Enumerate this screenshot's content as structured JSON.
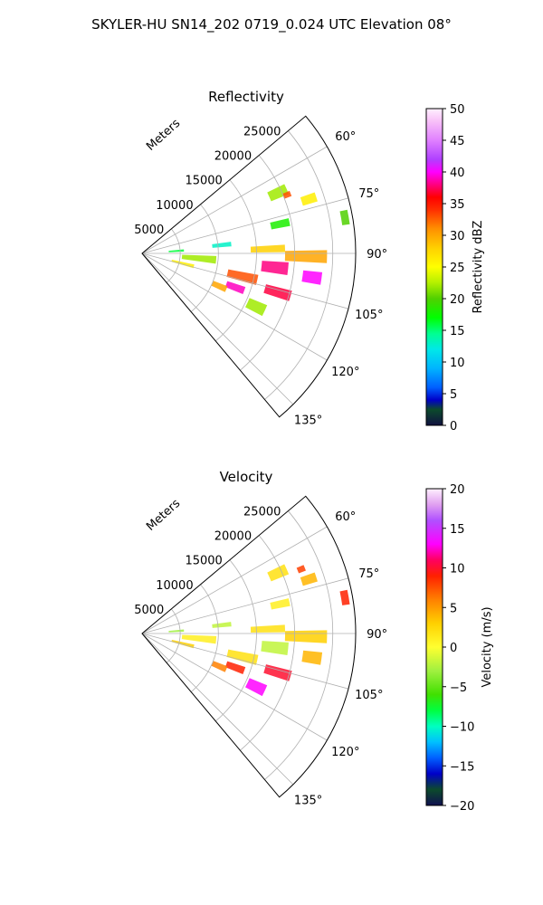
{
  "figure": {
    "title": "SKYLER-HU  SN14_202  0719_0.024 UTC Elevation 08°"
  },
  "chart_data": [
    {
      "type": "heatmap",
      "projection": "polar-sector",
      "title": "Reflectivity",
      "radial_axis_label": "Meters",
      "radial_ticks": [
        5000,
        10000,
        15000,
        20000,
        25000
      ],
      "radial_tick_labels": [
        "5000",
        "10000",
        "15000",
        "20000",
        "25000"
      ],
      "rmax": 28000,
      "angle_range_deg": [
        50,
        140
      ],
      "angle_ticks": [
        60,
        75,
        90,
        105,
        120,
        135
      ],
      "angle_tick_labels": [
        "60°",
        "75°",
        "90°",
        "105°",
        "120°",
        "135°"
      ],
      "grid": true,
      "colorbar": {
        "label": "Reflectivity dBZ",
        "min": 0,
        "max": 50,
        "ticks": [
          0,
          5,
          10,
          15,
          20,
          25,
          30,
          35,
          40,
          45,
          50
        ],
        "tick_labels": [
          "0",
          "5",
          "10",
          "15",
          "20",
          "25",
          "30",
          "35",
          "40",
          "45",
          "50"
        ],
        "stops": [
          {
            "v": 0,
            "color": "#101040"
          },
          {
            "v": 2.5,
            "color": "#0c4a2c"
          },
          {
            "v": 4,
            "color": "#0000c8"
          },
          {
            "v": 6,
            "color": "#0060ff"
          },
          {
            "v": 9,
            "color": "#00b4ff"
          },
          {
            "v": 12,
            "color": "#00e8e8"
          },
          {
            "v": 14.5,
            "color": "#00ff90"
          },
          {
            "v": 17,
            "color": "#00ff00"
          },
          {
            "v": 20,
            "color": "#50d000"
          },
          {
            "v": 22.5,
            "color": "#b4f000"
          },
          {
            "v": 25,
            "color": "#ffff00"
          },
          {
            "v": 28,
            "color": "#ffd000"
          },
          {
            "v": 31,
            "color": "#ff9000"
          },
          {
            "v": 34,
            "color": "#ff3000"
          },
          {
            "v": 36,
            "color": "#ff0000"
          },
          {
            "v": 38,
            "color": "#ff0080"
          },
          {
            "v": 40,
            "color": "#ff00ff"
          },
          {
            "v": 42,
            "color": "#b040ff"
          },
          {
            "v": 45,
            "color": "#e080ff"
          },
          {
            "v": 48,
            "color": "#f8c0f8"
          },
          {
            "v": 50,
            "color": "#fff0ff"
          }
        ]
      },
      "echo_cells": [
        {
          "theta": 66,
          "r": 19500,
          "dtheta": 4,
          "dr": 2500,
          "value": 22
        },
        {
          "theta": 68,
          "r": 20500,
          "dtheta": 2,
          "dr": 1000,
          "value": 33
        },
        {
          "theta": 72,
          "r": 23000,
          "dtheta": 3,
          "dr": 2000,
          "value": 26
        },
        {
          "theta": 78,
          "r": 18500,
          "dtheta": 3,
          "dr": 2500,
          "value": 18
        },
        {
          "theta": 80,
          "r": 27000,
          "dtheta": 4,
          "dr": 1000,
          "value": 20
        },
        {
          "theta": 84,
          "r": 10500,
          "dtheta": 3,
          "dr": 2500,
          "value": 13
        },
        {
          "theta": 86,
          "r": 4500,
          "dtheta": 3,
          "dr": 2000,
          "value": 16
        },
        {
          "theta": 88,
          "r": 16500,
          "dtheta": 3,
          "dr": 4500,
          "value": 28
        },
        {
          "theta": 91,
          "r": 21500,
          "dtheta": 4,
          "dr": 5500,
          "value": 30
        },
        {
          "theta": 95,
          "r": 7500,
          "dtheta": 6,
          "dr": 4500,
          "value": 22
        },
        {
          "theta": 96,
          "r": 17500,
          "dtheta": 5,
          "dr": 3500,
          "value": 38
        },
        {
          "theta": 98,
          "r": 22500,
          "dtheta": 4,
          "dr": 2500,
          "value": 40
        },
        {
          "theta": 103,
          "r": 13500,
          "dtheta": 5,
          "dr": 4000,
          "value": 33
        },
        {
          "theta": 106,
          "r": 18500,
          "dtheta": 4,
          "dr": 3500,
          "value": 37
        },
        {
          "theta": 104,
          "r": 5500,
          "dtheta": 4,
          "dr": 3000,
          "value": 26
        },
        {
          "theta": 110,
          "r": 13000,
          "dtheta": 4,
          "dr": 2500,
          "value": 39
        },
        {
          "theta": 113,
          "r": 11000,
          "dtheta": 4,
          "dr": 2000,
          "value": 30
        },
        {
          "theta": 115,
          "r": 16500,
          "dtheta": 5,
          "dr": 2500,
          "value": 22
        }
      ]
    },
    {
      "type": "heatmap",
      "projection": "polar-sector",
      "title": "Velocity",
      "radial_axis_label": "Meters",
      "radial_ticks": [
        5000,
        10000,
        15000,
        20000,
        25000
      ],
      "radial_tick_labels": [
        "5000",
        "10000",
        "15000",
        "20000",
        "25000"
      ],
      "rmax": 28000,
      "angle_range_deg": [
        50,
        140
      ],
      "angle_ticks": [
        60,
        75,
        90,
        105,
        120,
        135
      ],
      "angle_tick_labels": [
        "60°",
        "75°",
        "90°",
        "105°",
        "120°",
        "135°"
      ],
      "grid": true,
      "colorbar": {
        "label": "Velocity (m/s)",
        "min": -20,
        "max": 20,
        "ticks": [
          -20,
          -15,
          -10,
          -5,
          0,
          5,
          10,
          15,
          20
        ],
        "tick_labels": [
          "−20",
          "−15",
          "−10",
          "−5",
          "0",
          "5",
          "10",
          "15",
          "20"
        ],
        "stops": [
          {
            "v": -20,
            "color": "#101050"
          },
          {
            "v": -18,
            "color": "#0c4a2c"
          },
          {
            "v": -16,
            "color": "#0000c8"
          },
          {
            "v": -14,
            "color": "#0060ff"
          },
          {
            "v": -12,
            "color": "#00c0ff"
          },
          {
            "v": -10,
            "color": "#00ffc0"
          },
          {
            "v": -8,
            "color": "#00ff40"
          },
          {
            "v": -6,
            "color": "#40e000"
          },
          {
            "v": -3,
            "color": "#a0f040"
          },
          {
            "v": 0,
            "color": "#ffff30"
          },
          {
            "v": 3,
            "color": "#ffd000"
          },
          {
            "v": 6,
            "color": "#ff8000"
          },
          {
            "v": 9,
            "color": "#ff2000"
          },
          {
            "v": 11,
            "color": "#ff0060"
          },
          {
            "v": 13,
            "color": "#ff00ff"
          },
          {
            "v": 16,
            "color": "#b050ff"
          },
          {
            "v": 18,
            "color": "#e0a0f0"
          },
          {
            "v": 20,
            "color": "#fff0ff"
          }
        ]
      },
      "echo_cells": [
        {
          "theta": 66,
          "r": 19500,
          "dtheta": 4,
          "dr": 2500,
          "value": 2
        },
        {
          "theta": 68,
          "r": 22500,
          "dtheta": 2,
          "dr": 1000,
          "value": 8
        },
        {
          "theta": 72,
          "r": 23000,
          "dtheta": 3,
          "dr": 2000,
          "value": 4
        },
        {
          "theta": 78,
          "r": 18500,
          "dtheta": 3,
          "dr": 2500,
          "value": 1
        },
        {
          "theta": 80,
          "r": 27000,
          "dtheta": 4,
          "dr": 1000,
          "value": 9
        },
        {
          "theta": 84,
          "r": 10500,
          "dtheta": 3,
          "dr": 2500,
          "value": -2
        },
        {
          "theta": 86,
          "r": 4500,
          "dtheta": 3,
          "dr": 2000,
          "value": -3
        },
        {
          "theta": 88,
          "r": 16500,
          "dtheta": 3,
          "dr": 4500,
          "value": 2
        },
        {
          "theta": 91,
          "r": 21500,
          "dtheta": 4,
          "dr": 5500,
          "value": 3
        },
        {
          "theta": 95,
          "r": 7500,
          "dtheta": 6,
          "dr": 4500,
          "value": 1
        },
        {
          "theta": 96,
          "r": 17500,
          "dtheta": 5,
          "dr": 3500,
          "value": -2
        },
        {
          "theta": 98,
          "r": 22500,
          "dtheta": 4,
          "dr": 2500,
          "value": 4
        },
        {
          "theta": 103,
          "r": 13500,
          "dtheta": 5,
          "dr": 4000,
          "value": 2
        },
        {
          "theta": 106,
          "r": 18500,
          "dtheta": 4,
          "dr": 3500,
          "value": 10
        },
        {
          "theta": 104,
          "r": 5500,
          "dtheta": 4,
          "dr": 3000,
          "value": 3
        },
        {
          "theta": 110,
          "r": 13000,
          "dtheta": 4,
          "dr": 2500,
          "value": 9
        },
        {
          "theta": 113,
          "r": 11000,
          "dtheta": 4,
          "dr": 2000,
          "value": 6
        },
        {
          "theta": 115,
          "r": 16500,
          "dtheta": 5,
          "dr": 2500,
          "value": 13
        }
      ]
    }
  ]
}
